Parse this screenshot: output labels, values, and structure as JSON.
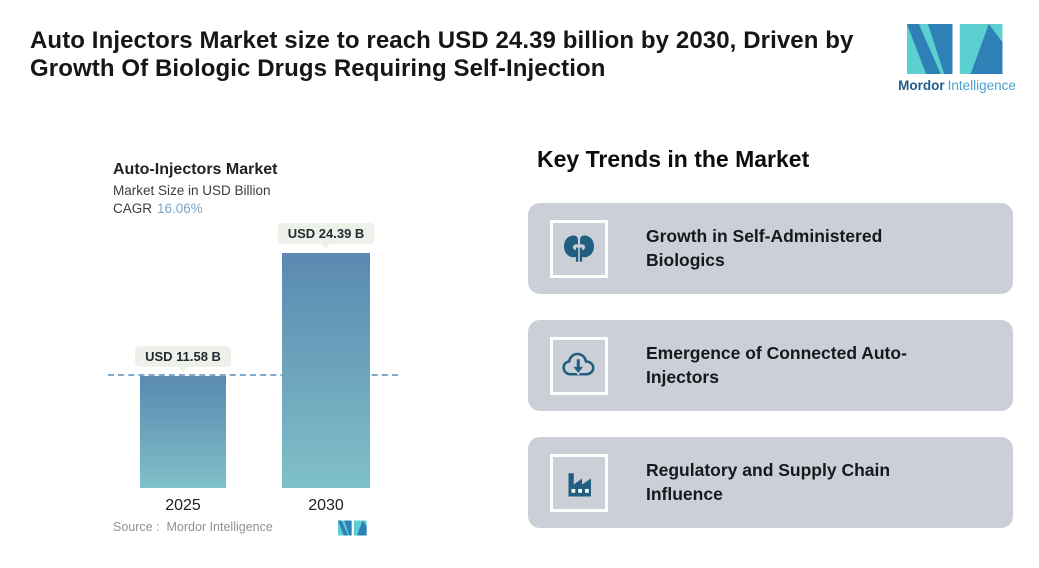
{
  "header": {
    "title": "Auto Injectors Market size to reach USD 24.39 billion by 2030, Driven by Growth Of Biologic Drugs Requiring Self-Injection"
  },
  "brand": {
    "name_bold": "Mordor",
    "name_light": "Intelligence",
    "colors": {
      "teal": "#5bd0d1",
      "blue": "#2e80b6",
      "text_dark": "#1d5c8c",
      "text_light": "#4aa0d2"
    }
  },
  "chart": {
    "title": "Auto-Injectors Market",
    "subtitle": "Market Size in USD Billion",
    "cagr_label": "CAGR",
    "cagr_value": "16.06%",
    "bar_labels": [
      "USD 11.58 B",
      "USD 24.39 B"
    ],
    "years": [
      "2025",
      "2030"
    ],
    "source": "Source :  Mordor Intelligence"
  },
  "chart_data": {
    "type": "bar",
    "title": "Auto-Injectors Market",
    "ylabel": "Market Size in USD Billion",
    "categories": [
      "2025",
      "2030"
    ],
    "values": [
      11.58,
      24.39
    ],
    "data_labels": [
      "USD 11.58 B",
      "USD 24.39 B"
    ],
    "cagr": "16.06%",
    "bar_gradient": [
      "#5a89b1",
      "#7fc0c9"
    ],
    "reference_line": {
      "y": 11.58,
      "style": "dashed",
      "color": "#7fa8cc"
    },
    "grid": false,
    "legend": false,
    "source": "Mordor Intelligence"
  },
  "trends": {
    "heading": "Key Trends in the Market",
    "card_bg": "#cbd0d8",
    "icon_color": "#215e80",
    "items": [
      {
        "label": "Growth in Self-Administered Biologics",
        "icon": "kidneys-icon"
      },
      {
        "label": "Emergence of Connected Auto-Injectors",
        "icon": "cloud-download-icon"
      },
      {
        "label": "Regulatory and Supply Chain Influence",
        "icon": "factory-icon"
      }
    ]
  }
}
